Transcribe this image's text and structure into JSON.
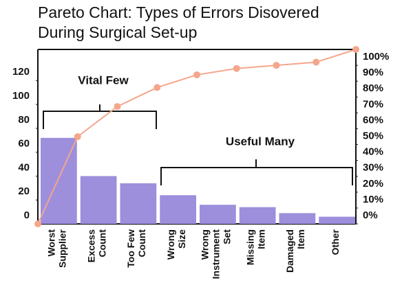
{
  "chart_data": {
    "type": "pareto",
    "title": [
      "Pareto Chart: Types of Errors Disovered",
      "During Surgical Set-up"
    ],
    "categories": [
      [
        "Worst",
        "Supplier"
      ],
      [
        "Excess",
        "Count"
      ],
      [
        "Too Few",
        "Count"
      ],
      [
        "Wrong",
        "Size"
      ],
      [
        "Wrong",
        "Instrument",
        "Set"
      ],
      [
        "Missing",
        "Item"
      ],
      [
        "Damaged",
        "Item"
      ],
      [
        "Other"
      ]
    ],
    "values": [
      72,
      40,
      34,
      24,
      16,
      14,
      9,
      6
    ],
    "color": "#9d8fdc",
    "cumulative": {
      "values": [
        0,
        55,
        74,
        86,
        94,
        98,
        100,
        102,
        110
      ],
      "color": "#f4a68c",
      "axis": "y2"
    },
    "ylim": [
      0,
      146
    ],
    "yticks": [
      0,
      20,
      40,
      60,
      80,
      100,
      120
    ],
    "y2lim": [
      0,
      110
    ],
    "y2ticks": [
      {
        "value": 0,
        "label": "0%"
      },
      {
        "value": 10,
        "label": "10%"
      },
      {
        "value": 20,
        "label": "20%"
      },
      {
        "value": 30,
        "label": "30%"
      },
      {
        "value": 40,
        "label": "40%"
      },
      {
        "value": 50,
        "label": "50%"
      },
      {
        "value": 60,
        "label": "60%"
      },
      {
        "value": 70,
        "label": "70%"
      },
      {
        "value": 80,
        "label": "80%"
      },
      {
        "value": 90,
        "label": "90%"
      },
      {
        "value": 100,
        "label": "100%"
      }
    ],
    "annotations": [
      "Vital Few",
      "Useful Many"
    ]
  }
}
